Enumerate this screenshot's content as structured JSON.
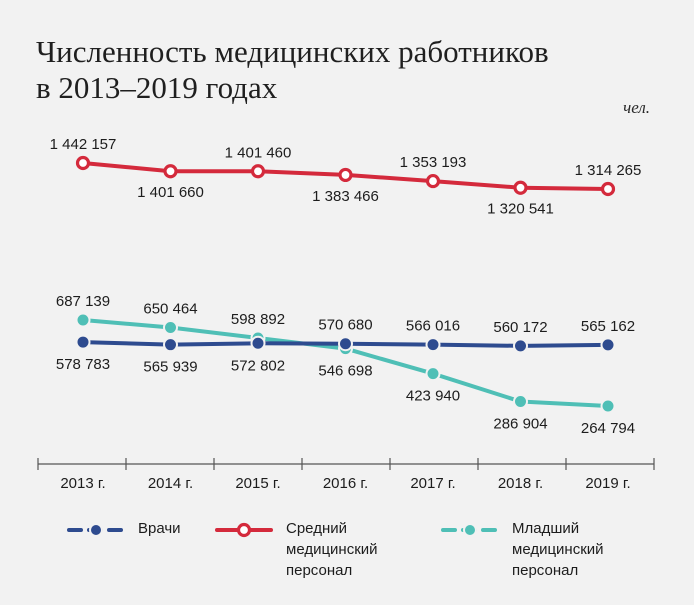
{
  "title_line1": "Численность медицинских работников",
  "title_line2": "в 2013–2019 годах",
  "unit": "чел.",
  "chart_data": {
    "type": "line",
    "categories": [
      "2013 г.",
      "2014 г.",
      "2015 г.",
      "2016 г.",
      "2017 г.",
      "2018 г.",
      "2019 г."
    ],
    "series": [
      {
        "name": "Врачи",
        "color": "#2e4b8f",
        "marker": "filled",
        "values": [
          578783,
          565939,
          572802,
          570680,
          566016,
          560172,
          565162
        ],
        "labels": [
          "578 783",
          "565 939",
          "572 802",
          "570 680",
          "566 016",
          "560 172",
          "565 162"
        ]
      },
      {
        "name": "Средний медицинский персонал",
        "color": "#d42a3c",
        "marker": "hollow",
        "values": [
          1442157,
          1401660,
          1401460,
          1383466,
          1353193,
          1320541,
          1314265
        ],
        "labels": [
          "1 442 157",
          "1 401 660",
          "1 401 460",
          "1 383 466",
          "1 353 193",
          "1 320 541",
          "1 314 265"
        ]
      },
      {
        "name": "Младший медицинский персонал",
        "color": "#4fbfb6",
        "marker": "filled",
        "values": [
          687139,
          650464,
          598892,
          546698,
          423940,
          286904,
          264794
        ],
        "labels": [
          "687 139",
          "650 464",
          "598 892",
          "546 698",
          "423 940",
          "286 904",
          "264 794"
        ]
      }
    ],
    "legend": {
      "items": [
        {
          "lines": [
            "Врачи"
          ]
        },
        {
          "lines": [
            "Средний",
            "медицинский",
            "персонал"
          ]
        },
        {
          "lines": [
            "Младший",
            "медицинский",
            "персонал"
          ]
        }
      ],
      "placement": "bottom"
    },
    "grid": false
  }
}
